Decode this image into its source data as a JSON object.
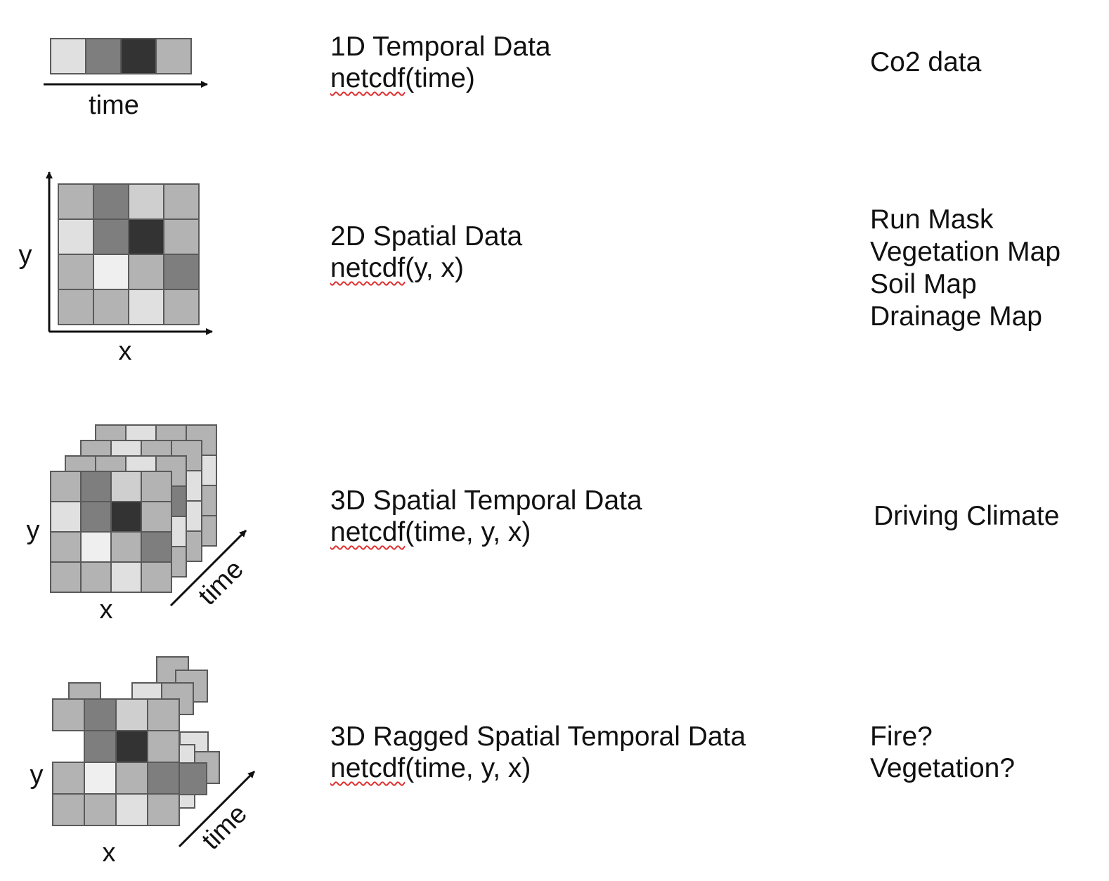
{
  "rows": [
    {
      "diagram_labels": {
        "axis": "time"
      },
      "title": "1D Temporal Data",
      "signature_fn": "netcdf",
      "signature_args": "(time)",
      "examples": [
        "Co2 data"
      ]
    },
    {
      "diagram_labels": {
        "y": "y",
        "x": "x"
      },
      "title": "2D Spatial Data",
      "signature_fn": "netcdf",
      "signature_args": "(y, x)",
      "examples": [
        "Run Mask",
        "Vegetation Map",
        "Soil Map",
        "Drainage Map"
      ]
    },
    {
      "diagram_labels": {
        "y": "y",
        "x": "x",
        "time": "time"
      },
      "title": "3D Spatial Temporal Data",
      "signature_fn": "netcdf",
      "signature_args": "(time, y, x)",
      "examples": [
        "Driving Climate"
      ]
    },
    {
      "diagram_labels": {
        "y": "y",
        "x": "x",
        "time": "time"
      },
      "title": "3D Ragged Spatial Temporal Data",
      "signature_fn": "netcdf",
      "signature_args": "(time, y, x)",
      "examples": [
        "Fire?",
        "Vegetation?"
      ]
    }
  ],
  "colors": {
    "stroke": "#5a5a5a",
    "axis": "#111111",
    "spellcheck_underline": "#e03030",
    "grays": [
      "#efefef",
      "#e0e0e0",
      "#cfcfcf",
      "#b3b3b3",
      "#a8a8a8",
      "#7e7e7e",
      "#333333"
    ]
  }
}
